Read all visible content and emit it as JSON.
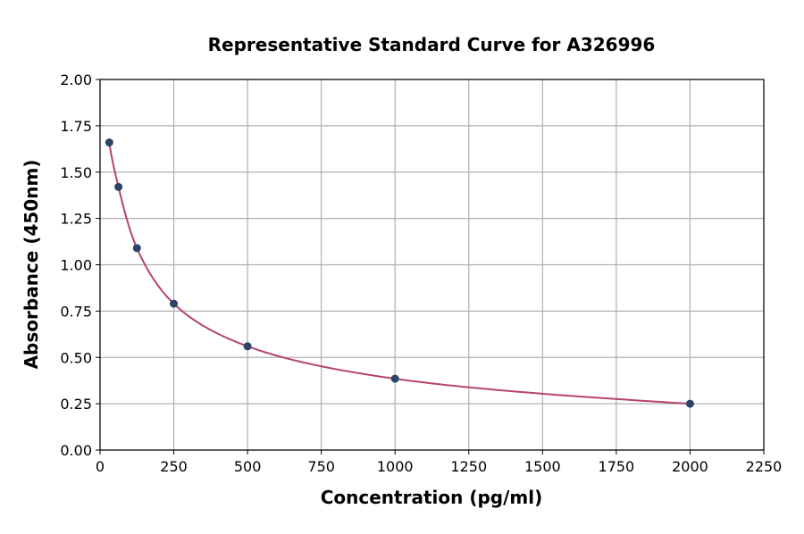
{
  "chart_data": {
    "type": "line",
    "title": "Representative Standard Curve for A326996",
    "xlabel": "Concentration (pg/ml)",
    "ylabel": "Absorbance (450nm)",
    "xlim": [
      0,
      2250
    ],
    "ylim": [
      0,
      2.0
    ],
    "xticks": [
      "0",
      "250",
      "500",
      "750",
      "1000",
      "1250",
      "1500",
      "1750",
      "2000",
      "2250"
    ],
    "yticks": [
      "0.00",
      "0.25",
      "0.50",
      "0.75",
      "1.00",
      "1.25",
      "1.50",
      "1.75",
      "2.00"
    ],
    "grid": true,
    "points": {
      "x": [
        31.25,
        62.5,
        125,
        250,
        500,
        1000,
        2000
      ],
      "y": [
        1.66,
        1.42,
        1.09,
        0.79,
        0.56,
        0.385,
        0.25
      ]
    },
    "colors": {
      "points": "#2b4468",
      "curve": "#b5446e",
      "grid": "#b0b0b0"
    }
  }
}
